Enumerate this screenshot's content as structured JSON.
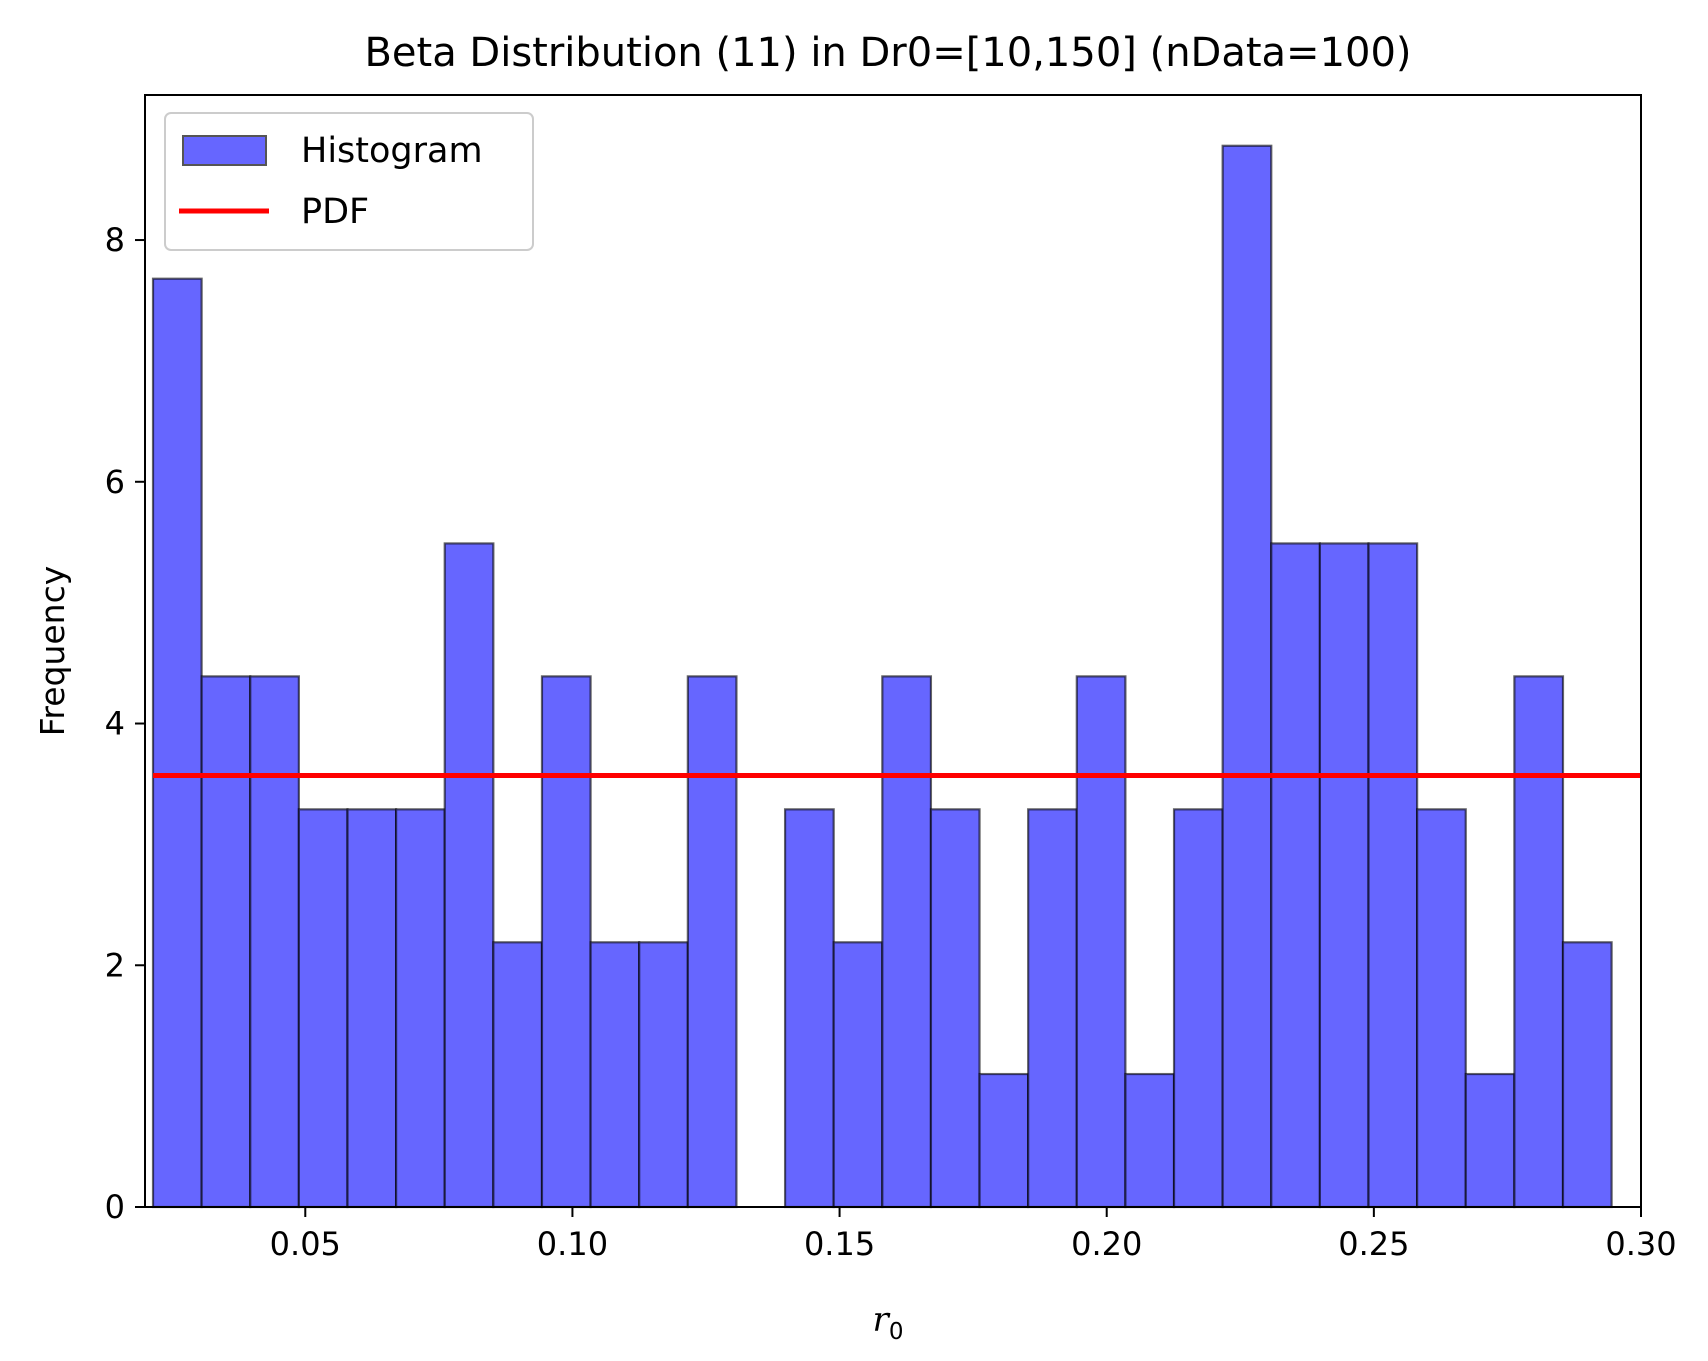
{
  "chart_data": {
    "type": "bar",
    "title": "Beta Distribution (11) in Dr0=[10,150] (nData=100)",
    "xlabel_base": "r",
    "xlabel_sub": "0",
    "ylabel": "Frequency",
    "xlim": [
      0.02,
      0.3
    ],
    "ylim": [
      0,
      9.2
    ],
    "xticks": [
      0.05,
      0.1,
      0.15,
      0.2,
      0.25,
      0.3
    ],
    "xtick_labels": [
      "0.05",
      "0.10",
      "0.15",
      "0.20",
      "0.25",
      "0.30"
    ],
    "yticks": [
      0,
      2,
      4,
      6,
      8
    ],
    "ytick_labels": [
      "0",
      "2",
      "4",
      "6",
      "8"
    ],
    "bin_edges": [
      0.0215,
      0.0306,
      0.0397,
      0.0488,
      0.0579,
      0.067,
      0.0761,
      0.0852,
      0.0943,
      0.1034,
      0.1125,
      0.1216,
      0.1307,
      0.1398,
      0.1489,
      0.158,
      0.1671,
      0.1762,
      0.1853,
      0.1944,
      0.2035,
      0.2126,
      0.2217,
      0.2308,
      0.2399,
      0.249,
      0.2581,
      0.2672,
      0.2763,
      0.2854,
      0.2945
    ],
    "values": [
      7.68,
      4.39,
      4.39,
      3.29,
      3.29,
      3.29,
      5.49,
      2.19,
      4.39,
      2.19,
      2.19,
      4.39,
      0,
      3.29,
      2.19,
      4.39,
      3.29,
      1.1,
      3.29,
      4.39,
      1.1,
      3.29,
      8.78,
      5.49,
      5.49,
      5.49,
      3.29,
      1.1,
      4.39,
      2.19
    ],
    "pdf_value": 3.57,
    "legend_position": "upper left",
    "grid": false,
    "series": [
      {
        "name": "Histogram",
        "color": "#6666ff",
        "edgecolor": "#000000"
      },
      {
        "name": "PDF",
        "color": "#ff0000"
      }
    ]
  }
}
